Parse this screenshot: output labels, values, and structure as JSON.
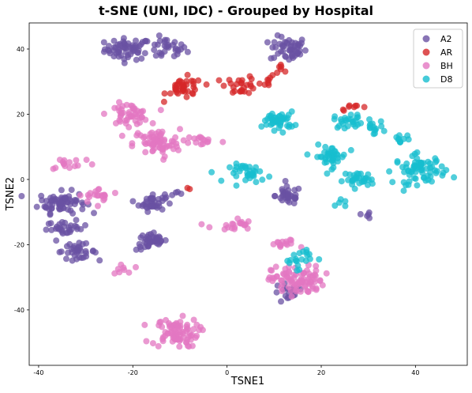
{
  "chart_data": {
    "type": "scatter",
    "title": "t-SNE (UNI, IDC) - Grouped by Hospital",
    "xlabel": "TSNE1",
    "ylabel": "TSNE2",
    "xlim": [
      -42,
      51
    ],
    "ylim": [
      -57,
      48
    ],
    "xticks": [
      -40,
      -20,
      0,
      20,
      40
    ],
    "yticks": [
      -40,
      -20,
      0,
      20,
      40
    ],
    "grid": false,
    "legend_position": "top-right",
    "series": [
      {
        "name": "A2",
        "color": "#6a51a3",
        "clusters": [
          {
            "cx": -21,
            "cy": 40,
            "rx": 4.5,
            "ry": 3,
            "n": 60
          },
          {
            "cx": -13,
            "cy": 40,
            "rx": 4,
            "ry": 3,
            "n": 30
          },
          {
            "cx": 13,
            "cy": 40,
            "rx": 3.5,
            "ry": 3.5,
            "n": 50
          },
          {
            "cx": -35,
            "cy": -7,
            "rx": 4.5,
            "ry": 3,
            "n": 70
          },
          {
            "cx": -16,
            "cy": -7,
            "rx": 2.5,
            "ry": 2.5,
            "n": 40
          },
          {
            "cx": -34,
            "cy": -15,
            "rx": 4,
            "ry": 2,
            "n": 30
          },
          {
            "cx": -32,
            "cy": -22,
            "rx": 4,
            "ry": 2,
            "n": 35
          },
          {
            "cx": -16,
            "cy": -19,
            "rx": 3,
            "ry": 2.5,
            "n": 40
          },
          {
            "cx": 13,
            "cy": -5,
            "rx": 2.5,
            "ry": 2.5,
            "n": 35
          },
          {
            "cx": 13,
            "cy": -35,
            "rx": 3,
            "ry": 3,
            "n": 20
          },
          {
            "cx": 29,
            "cy": -11,
            "rx": 1.5,
            "ry": 1,
            "n": 5
          },
          {
            "cx": -10,
            "cy": -5,
            "rx": 2,
            "ry": 1,
            "n": 5
          }
        ]
      },
      {
        "name": "AR",
        "color": "#d62728",
        "clusters": [
          {
            "cx": -9,
            "cy": 28,
            "rx": 3.5,
            "ry": 3,
            "n": 40
          },
          {
            "cx": 3,
            "cy": 29,
            "rx": 3,
            "ry": 2.5,
            "n": 25
          },
          {
            "cx": 9,
            "cy": 30,
            "rx": 2,
            "ry": 1.5,
            "n": 8
          },
          {
            "cx": 12,
            "cy": 35,
            "rx": 1.5,
            "ry": 2,
            "n": 6
          },
          {
            "cx": 27,
            "cy": 22,
            "rx": 3,
            "ry": 0.8,
            "n": 8
          },
          {
            "cx": -8,
            "cy": -3,
            "rx": 1,
            "ry": 1,
            "n": 2
          }
        ]
      },
      {
        "name": "BH",
        "color": "#e377c2",
        "clusters": [
          {
            "cx": -21,
            "cy": 20,
            "rx": 4,
            "ry": 3,
            "n": 50
          },
          {
            "cx": -15,
            "cy": 11,
            "rx": 4.5,
            "ry": 4,
            "n": 70
          },
          {
            "cx": -5,
            "cy": 12,
            "rx": 3.5,
            "ry": 1.5,
            "n": 15
          },
          {
            "cx": -33,
            "cy": 5,
            "rx": 5,
            "ry": 2,
            "n": 15
          },
          {
            "cx": -27,
            "cy": -5,
            "rx": 4,
            "ry": 2,
            "n": 20
          },
          {
            "cx": 1,
            "cy": -14,
            "rx": 4,
            "ry": 2,
            "n": 20
          },
          {
            "cx": -22,
            "cy": -27,
            "rx": 2,
            "ry": 2,
            "n": 8
          },
          {
            "cx": -11,
            "cy": -47,
            "rx": 4.5,
            "ry": 4,
            "n": 80
          },
          {
            "cx": 15,
            "cy": -31,
            "rx": 5,
            "ry": 4,
            "n": 90
          },
          {
            "cx": 12,
            "cy": -20,
            "rx": 3,
            "ry": 1.5,
            "n": 15
          }
        ]
      },
      {
        "name": "D8",
        "color": "#17becf",
        "clusters": [
          {
            "cx": 11,
            "cy": 18,
            "rx": 3,
            "ry": 2.5,
            "n": 45
          },
          {
            "cx": 26,
            "cy": 18,
            "rx": 3,
            "ry": 2,
            "n": 25
          },
          {
            "cx": 31,
            "cy": 16,
            "rx": 2,
            "ry": 2,
            "n": 15
          },
          {
            "cx": 22,
            "cy": 7,
            "rx": 3,
            "ry": 3,
            "n": 40
          },
          {
            "cx": 28,
            "cy": 0,
            "rx": 3,
            "ry": 2,
            "n": 30
          },
          {
            "cx": 5,
            "cy": 2,
            "rx": 4,
            "ry": 2.5,
            "n": 35
          },
          {
            "cx": 41,
            "cy": 3,
            "rx": 5,
            "ry": 4,
            "n": 70
          },
          {
            "cx": 37,
            "cy": 12,
            "rx": 1.5,
            "ry": 2,
            "n": 10
          },
          {
            "cx": 15,
            "cy": -24,
            "rx": 3,
            "ry": 3,
            "n": 20
          },
          {
            "cx": 24,
            "cy": -7,
            "rx": 1,
            "ry": 1.5,
            "n": 5
          }
        ]
      }
    ]
  }
}
